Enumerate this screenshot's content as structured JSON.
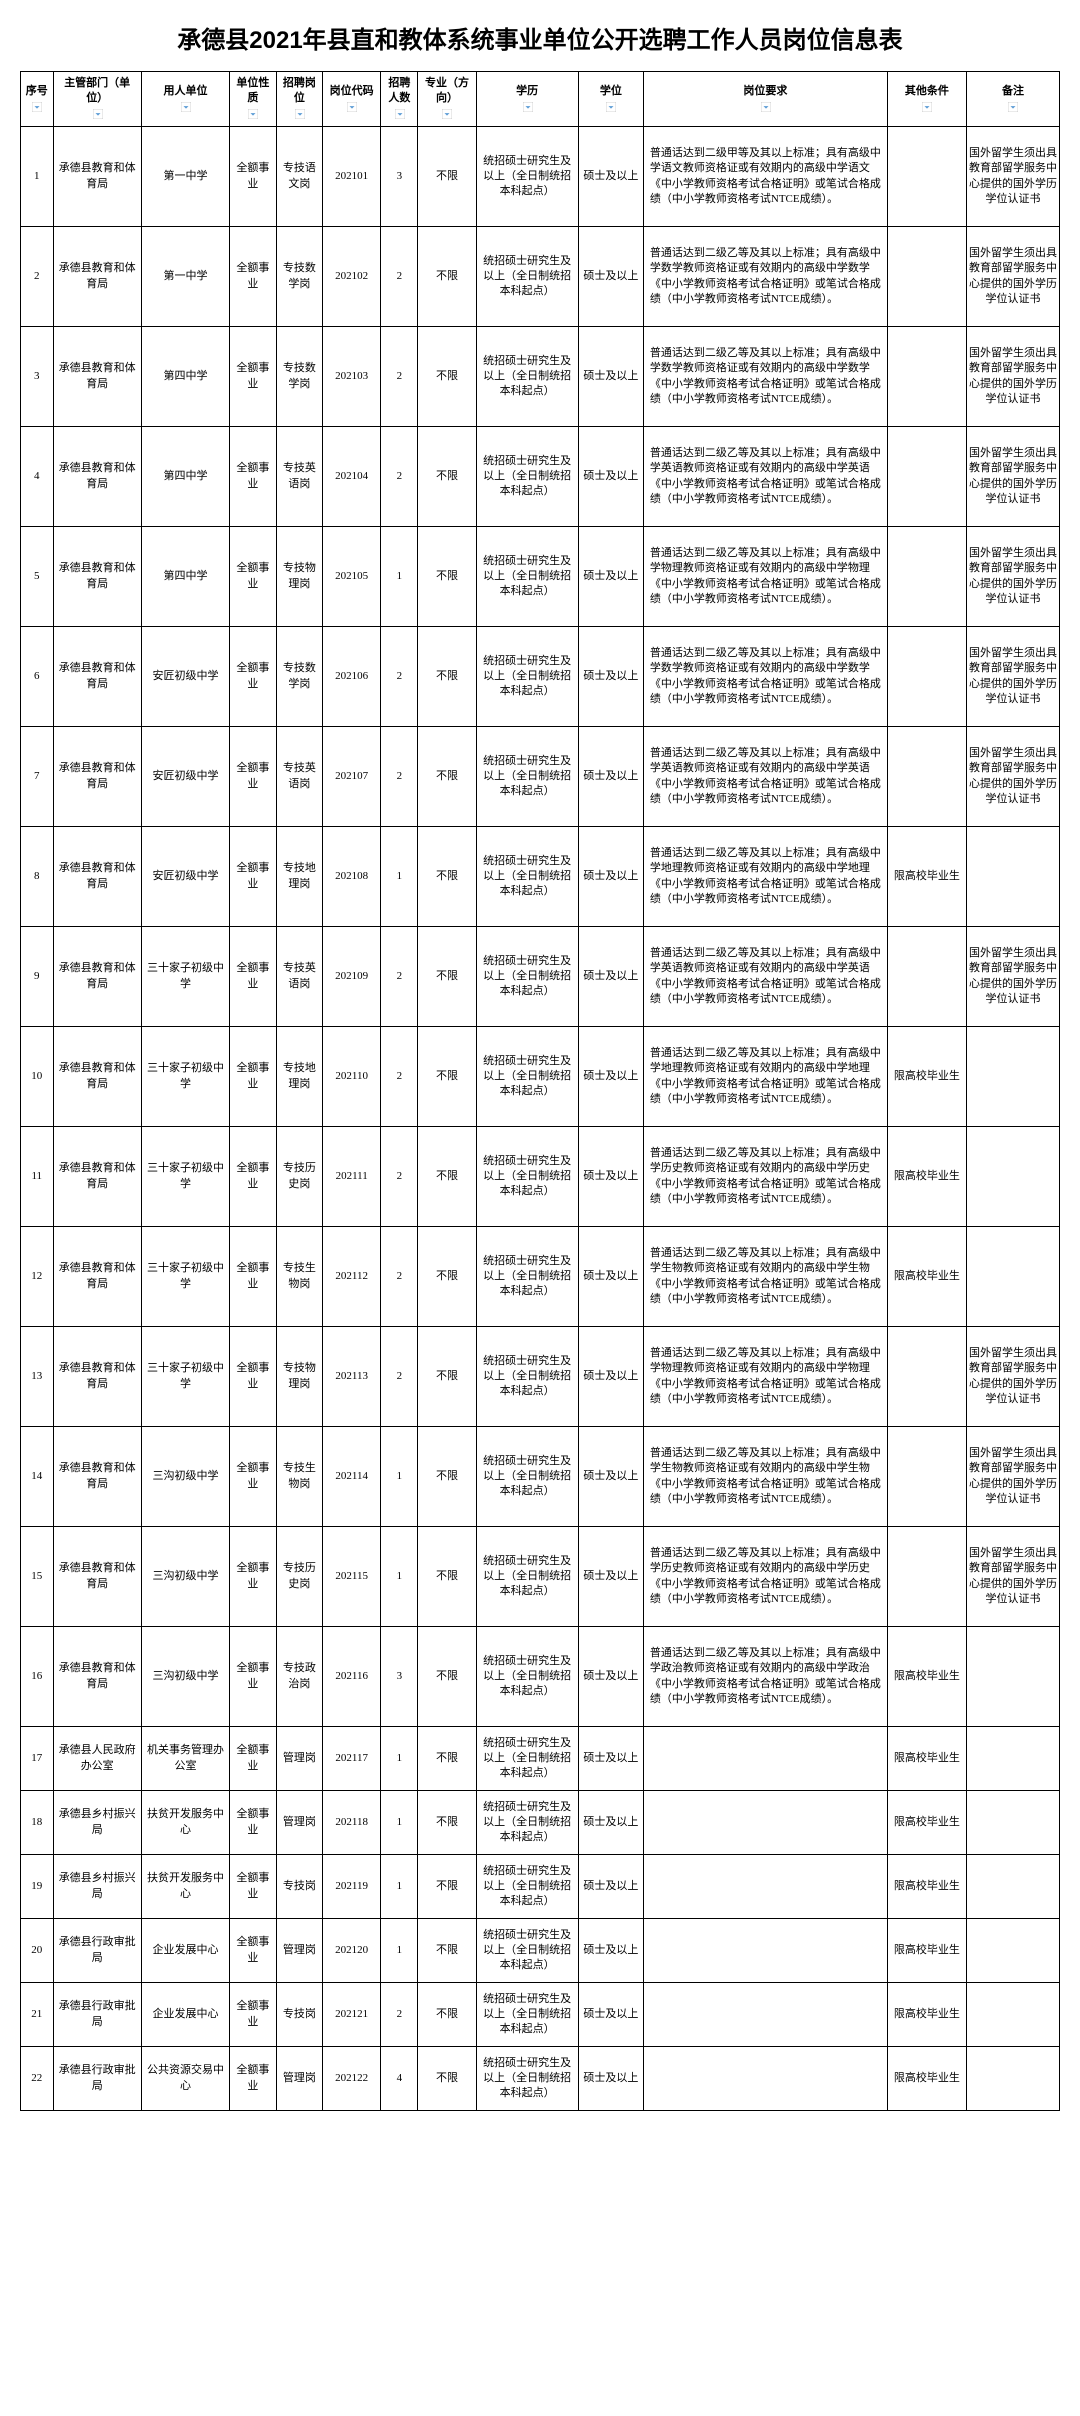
{
  "title": "承德县2021年县直和教体系统事业单位公开选聘工作人员岗位信息表",
  "headers": [
    "序号",
    "主管部门（单位）",
    "用人单位",
    "单位性质",
    "招聘岗位",
    "岗位代码",
    "招聘人数",
    "专业（方向）",
    "学历",
    "学位",
    "岗位要求",
    "其他条件",
    "备注"
  ],
  "colors": {
    "border": "#000000",
    "text": "#000000",
    "bg": "#ffffff",
    "filter": "#5b9bd5"
  },
  "rows": [
    {
      "seq": "1",
      "dept": "承德县教育和体育局",
      "employer": "第一中学",
      "nature": "全额事业",
      "post": "专技语文岗",
      "code": "202101",
      "count": "3",
      "major": "不限",
      "edu": "统招硕士研究生及以上（全日制统招本科起点）",
      "degree": "硕士及以上",
      "req": "普通话达到二级甲等及其以上标准；具有高级中学语文教师资格证或有效期内的高级中学语文《中小学教师资格考试合格证明》或笔试合格成绩（中小学教师资格考试NTCE成绩）。",
      "other": "",
      "remark": "国外留学生须出具教育部留学服务中心提供的国外学历学位认证书"
    },
    {
      "seq": "2",
      "dept": "承德县教育和体育局",
      "employer": "第一中学",
      "nature": "全额事业",
      "post": "专技数学岗",
      "code": "202102",
      "count": "2",
      "major": "不限",
      "edu": "统招硕士研究生及以上（全日制统招本科起点）",
      "degree": "硕士及以上",
      "req": "普通话达到二级乙等及其以上标准；具有高级中学数学教师资格证或有效期内的高级中学数学《中小学教师资格考试合格证明》或笔试合格成绩（中小学教师资格考试NTCE成绩）。",
      "other": "",
      "remark": "国外留学生须出具教育部留学服务中心提供的国外学历学位认证书"
    },
    {
      "seq": "3",
      "dept": "承德县教育和体育局",
      "employer": "第四中学",
      "nature": "全额事业",
      "post": "专技数学岗",
      "code": "202103",
      "count": "2",
      "major": "不限",
      "edu": "统招硕士研究生及以上（全日制统招本科起点）",
      "degree": "硕士及以上",
      "req": "普通话达到二级乙等及其以上标准；具有高级中学数学教师资格证或有效期内的高级中学数学《中小学教师资格考试合格证明》或笔试合格成绩（中小学教师资格考试NTCE成绩）。",
      "other": "",
      "remark": "国外留学生须出具教育部留学服务中心提供的国外学历学位认证书"
    },
    {
      "seq": "4",
      "dept": "承德县教育和体育局",
      "employer": "第四中学",
      "nature": "全额事业",
      "post": "专技英语岗",
      "code": "202104",
      "count": "2",
      "major": "不限",
      "edu": "统招硕士研究生及以上（全日制统招本科起点）",
      "degree": "硕士及以上",
      "req": "普通话达到二级乙等及其以上标准；具有高级中学英语教师资格证或有效期内的高级中学英语《中小学教师资格考试合格证明》或笔试合格成绩（中小学教师资格考试NTCE成绩）。",
      "other": "",
      "remark": "国外留学生须出具教育部留学服务中心提供的国外学历学位认证书"
    },
    {
      "seq": "5",
      "dept": "承德县教育和体育局",
      "employer": "第四中学",
      "nature": "全额事业",
      "post": "专技物理岗",
      "code": "202105",
      "count": "1",
      "major": "不限",
      "edu": "统招硕士研究生及以上（全日制统招本科起点）",
      "degree": "硕士及以上",
      "req": "普通话达到二级乙等及其以上标准；具有高级中学物理教师资格证或有效期内的高级中学物理《中小学教师资格考试合格证明》或笔试合格成绩（中小学教师资格考试NTCE成绩）。",
      "other": "",
      "remark": "国外留学生须出具教育部留学服务中心提供的国外学历学位认证书"
    },
    {
      "seq": "6",
      "dept": "承德县教育和体育局",
      "employer": "安匠初级中学",
      "nature": "全额事业",
      "post": "专技数学岗",
      "code": "202106",
      "count": "2",
      "major": "不限",
      "edu": "统招硕士研究生及以上（全日制统招本科起点）",
      "degree": "硕士及以上",
      "req": "普通话达到二级乙等及其以上标准；具有高级中学数学教师资格证或有效期内的高级中学数学《中小学教师资格考试合格证明》或笔试合格成绩（中小学教师资格考试NTCE成绩）。",
      "other": "",
      "remark": "国外留学生须出具教育部留学服务中心提供的国外学历学位认证书"
    },
    {
      "seq": "7",
      "dept": "承德县教育和体育局",
      "employer": "安匠初级中学",
      "nature": "全额事业",
      "post": "专技英语岗",
      "code": "202107",
      "count": "2",
      "major": "不限",
      "edu": "统招硕士研究生及以上（全日制统招本科起点）",
      "degree": "硕士及以上",
      "req": "普通话达到二级乙等及其以上标准；具有高级中学英语教师资格证或有效期内的高级中学英语《中小学教师资格考试合格证明》或笔试合格成绩（中小学教师资格考试NTCE成绩）。",
      "other": "",
      "remark": "国外留学生须出具教育部留学服务中心提供的国外学历学位认证书"
    },
    {
      "seq": "8",
      "dept": "承德县教育和体育局",
      "employer": "安匠初级中学",
      "nature": "全额事业",
      "post": "专技地理岗",
      "code": "202108",
      "count": "1",
      "major": "不限",
      "edu": "统招硕士研究生及以上（全日制统招本科起点）",
      "degree": "硕士及以上",
      "req": "普通话达到二级乙等及其以上标准；具有高级中学地理教师资格证或有效期内的高级中学地理《中小学教师资格考试合格证明》或笔试合格成绩（中小学教师资格考试NTCE成绩）。",
      "other": "限高校毕业生",
      "remark": ""
    },
    {
      "seq": "9",
      "dept": "承德县教育和体育局",
      "employer": "三十家子初级中学",
      "nature": "全额事业",
      "post": "专技英语岗",
      "code": "202109",
      "count": "2",
      "major": "不限",
      "edu": "统招硕士研究生及以上（全日制统招本科起点）",
      "degree": "硕士及以上",
      "req": "普通话达到二级乙等及其以上标准；具有高级中学英语教师资格证或有效期内的高级中学英语《中小学教师资格考试合格证明》或笔试合格成绩（中小学教师资格考试NTCE成绩）。",
      "other": "",
      "remark": "国外留学生须出具教育部留学服务中心提供的国外学历学位认证书"
    },
    {
      "seq": "10",
      "dept": "承德县教育和体育局",
      "employer": "三十家子初级中学",
      "nature": "全额事业",
      "post": "专技地理岗",
      "code": "202110",
      "count": "2",
      "major": "不限",
      "edu": "统招硕士研究生及以上（全日制统招本科起点）",
      "degree": "硕士及以上",
      "req": "普通话达到二级乙等及其以上标准；具有高级中学地理教师资格证或有效期内的高级中学地理《中小学教师资格考试合格证明》或笔试合格成绩（中小学教师资格考试NTCE成绩）。",
      "other": "限高校毕业生",
      "remark": ""
    },
    {
      "seq": "11",
      "dept": "承德县教育和体育局",
      "employer": "三十家子初级中学",
      "nature": "全额事业",
      "post": "专技历史岗",
      "code": "202111",
      "count": "2",
      "major": "不限",
      "edu": "统招硕士研究生及以上（全日制统招本科起点）",
      "degree": "硕士及以上",
      "req": "普通话达到二级乙等及其以上标准；具有高级中学历史教师资格证或有效期内的高级中学历史《中小学教师资格考试合格证明》或笔试合格成绩（中小学教师资格考试NTCE成绩）。",
      "other": "限高校毕业生",
      "remark": ""
    },
    {
      "seq": "12",
      "dept": "承德县教育和体育局",
      "employer": "三十家子初级中学",
      "nature": "全额事业",
      "post": "专技生物岗",
      "code": "202112",
      "count": "2",
      "major": "不限",
      "edu": "统招硕士研究生及以上（全日制统招本科起点）",
      "degree": "硕士及以上",
      "req": "普通话达到二级乙等及其以上标准；具有高级中学生物教师资格证或有效期内的高级中学生物《中小学教师资格考试合格证明》或笔试合格成绩（中小学教师资格考试NTCE成绩）。",
      "other": "限高校毕业生",
      "remark": ""
    },
    {
      "seq": "13",
      "dept": "承德县教育和体育局",
      "employer": "三十家子初级中学",
      "nature": "全额事业",
      "post": "专技物理岗",
      "code": "202113",
      "count": "2",
      "major": "不限",
      "edu": "统招硕士研究生及以上（全日制统招本科起点）",
      "degree": "硕士及以上",
      "req": "普通话达到二级乙等及其以上标准；具有高级中学物理教师资格证或有效期内的高级中学物理《中小学教师资格考试合格证明》或笔试合格成绩（中小学教师资格考试NTCE成绩）。",
      "other": "",
      "remark": "国外留学生须出具教育部留学服务中心提供的国外学历学位认证书"
    },
    {
      "seq": "14",
      "dept": "承德县教育和体育局",
      "employer": "三沟初级中学",
      "nature": "全额事业",
      "post": "专技生物岗",
      "code": "202114",
      "count": "1",
      "major": "不限",
      "edu": "统招硕士研究生及以上（全日制统招本科起点）",
      "degree": "硕士及以上",
      "req": "普通话达到二级乙等及其以上标准；具有高级中学生物教师资格证或有效期内的高级中学生物《中小学教师资格考试合格证明》或笔试合格成绩（中小学教师资格考试NTCE成绩）。",
      "other": "",
      "remark": "国外留学生须出具教育部留学服务中心提供的国外学历学位认证书"
    },
    {
      "seq": "15",
      "dept": "承德县教育和体育局",
      "employer": "三沟初级中学",
      "nature": "全额事业",
      "post": "专技历史岗",
      "code": "202115",
      "count": "1",
      "major": "不限",
      "edu": "统招硕士研究生及以上（全日制统招本科起点）",
      "degree": "硕士及以上",
      "req": "普通话达到二级乙等及其以上标准；具有高级中学历史教师资格证或有效期内的高级中学历史《中小学教师资格考试合格证明》或笔试合格成绩（中小学教师资格考试NTCE成绩）。",
      "other": "",
      "remark": "国外留学生须出具教育部留学服务中心提供的国外学历学位认证书"
    },
    {
      "seq": "16",
      "dept": "承德县教育和体育局",
      "employer": "三沟初级中学",
      "nature": "全额事业",
      "post": "专技政治岗",
      "code": "202116",
      "count": "3",
      "major": "不限",
      "edu": "统招硕士研究生及以上（全日制统招本科起点）",
      "degree": "硕士及以上",
      "req": "普通话达到二级乙等及其以上标准；具有高级中学政治教师资格证或有效期内的高级中学政治《中小学教师资格考试合格证明》或笔试合格成绩（中小学教师资格考试NTCE成绩）。",
      "other": "限高校毕业生",
      "remark": ""
    },
    {
      "seq": "17",
      "dept": "承德县人民政府办公室",
      "employer": "机关事务管理办公室",
      "nature": "全额事业",
      "post": "管理岗",
      "code": "202117",
      "count": "1",
      "major": "不限",
      "edu": "统招硕士研究生及以上（全日制统招本科起点）",
      "degree": "硕士及以上",
      "req": "",
      "other": "限高校毕业生",
      "remark": "",
      "short": true
    },
    {
      "seq": "18",
      "dept": "承德县乡村振兴局",
      "employer": "扶贫开发服务中心",
      "nature": "全额事业",
      "post": "管理岗",
      "code": "202118",
      "count": "1",
      "major": "不限",
      "edu": "统招硕士研究生及以上（全日制统招本科起点）",
      "degree": "硕士及以上",
      "req": "",
      "other": "限高校毕业生",
      "remark": "",
      "short": true
    },
    {
      "seq": "19",
      "dept": "承德县乡村振兴局",
      "employer": "扶贫开发服务中心",
      "nature": "全额事业",
      "post": "专技岗",
      "code": "202119",
      "count": "1",
      "major": "不限",
      "edu": "统招硕士研究生及以上（全日制统招本科起点）",
      "degree": "硕士及以上",
      "req": "",
      "other": "限高校毕业生",
      "remark": "",
      "short": true
    },
    {
      "seq": "20",
      "dept": "承德县行政审批局",
      "employer": "企业发展中心",
      "nature": "全额事业",
      "post": "管理岗",
      "code": "202120",
      "count": "1",
      "major": "不限",
      "edu": "统招硕士研究生及以上（全日制统招本科起点）",
      "degree": "硕士及以上",
      "req": "",
      "other": "限高校毕业生",
      "remark": "",
      "short": true
    },
    {
      "seq": "21",
      "dept": "承德县行政审批局",
      "employer": "企业发展中心",
      "nature": "全额事业",
      "post": "专技岗",
      "code": "202121",
      "count": "2",
      "major": "不限",
      "edu": "统招硕士研究生及以上（全日制统招本科起点）",
      "degree": "硕士及以上",
      "req": "",
      "other": "限高校毕业生",
      "remark": "",
      "short": true
    },
    {
      "seq": "22",
      "dept": "承德县行政审批局",
      "employer": "公共资源交易中心",
      "nature": "全额事业",
      "post": "管理岗",
      "code": "202122",
      "count": "4",
      "major": "不限",
      "edu": "统招硕士研究生及以上（全日制统招本科起点）",
      "degree": "硕士及以上",
      "req": "",
      "other": "限高校毕业生",
      "remark": "",
      "short": true
    }
  ]
}
